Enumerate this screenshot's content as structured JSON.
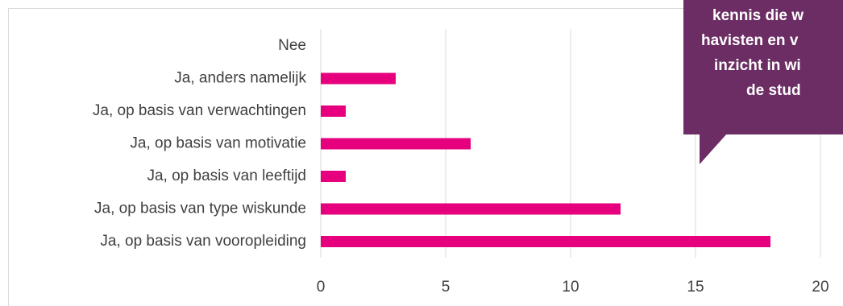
{
  "chart_data": {
    "type": "bar",
    "orientation": "horizontal",
    "categories": [
      "Nee",
      "Ja, anders namelijk",
      "Ja, op basis van verwachtingen",
      "Ja, op basis van motivatie",
      "Ja, op basis van leeftijd",
      "Ja, op basis van type wiskunde",
      "Ja, op basis van vooropleiding"
    ],
    "values": [
      0,
      3,
      1,
      6,
      1,
      12,
      18
    ],
    "xlim": [
      0,
      20
    ],
    "xticks": [
      0,
      5,
      10,
      15,
      20
    ],
    "xtick_labels": [
      "0",
      "5",
      "10",
      "15",
      "20"
    ],
    "grid": true,
    "bar_color": "#e6007e",
    "title": "",
    "xlabel": "",
    "ylabel": ""
  },
  "callout": {
    "lines": [
      "kennis die w",
      "havisten en v",
      "inzicht in wi",
      "de stud"
    ],
    "color": "#6b2d63"
  }
}
